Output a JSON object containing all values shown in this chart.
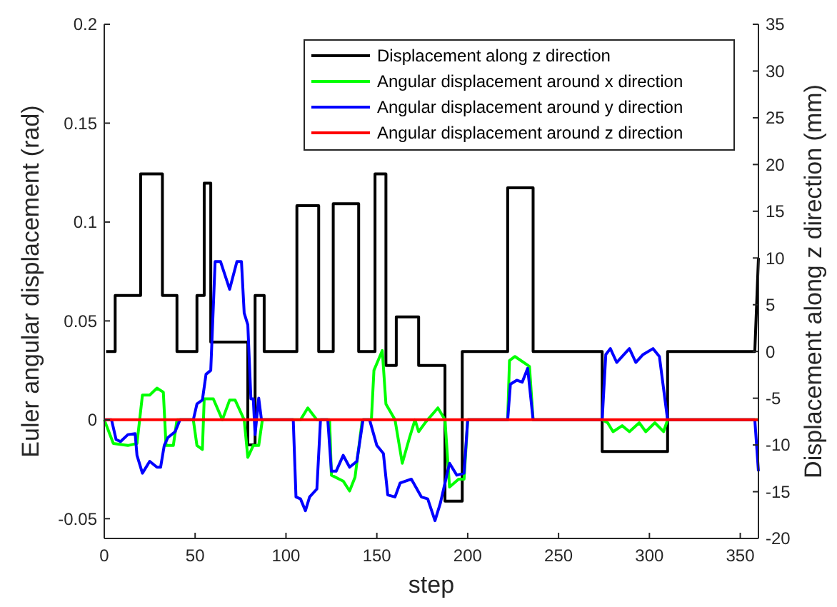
{
  "chart_data": {
    "type": "line",
    "xlabel": "step",
    "ylabel": "Euler angular displacement (rad)",
    "y2label": "Displacement along z direction (mm)",
    "xlim": [
      0,
      360
    ],
    "xticks": [
      0,
      50,
      100,
      150,
      200,
      250,
      300,
      350
    ],
    "ylim": [
      -0.06,
      0.2
    ],
    "yticks": [
      -0.05,
      0,
      0.05,
      0.1,
      0.15,
      0.2
    ],
    "y2lim": [
      -20,
      35
    ],
    "y2ticks": [
      -20,
      -15,
      -10,
      -5,
      0,
      5,
      10,
      15,
      20,
      25,
      30,
      35
    ],
    "legend": "top right",
    "series": [
      {
        "name": "Displacement along z direction",
        "color": "#000000",
        "axis": "y2",
        "x": [
          1,
          6,
          6,
          20,
          20,
          32,
          32,
          40,
          40,
          51,
          51,
          55,
          55,
          58.6,
          58.6,
          79,
          79,
          83,
          83,
          88,
          88,
          106,
          106,
          118,
          118,
          126,
          126,
          140,
          140,
          149,
          149,
          155,
          155,
          160.7,
          160.7,
          173,
          173,
          187.5,
          187.5,
          197,
          197,
          222,
          222,
          236,
          236,
          274,
          274,
          310,
          310,
          358,
          360
        ],
        "values": [
          0,
          0,
          6,
          6,
          19,
          19,
          6,
          6,
          0,
          0,
          6,
          6,
          18,
          18,
          1,
          1,
          -10,
          -10,
          6,
          6,
          0,
          0,
          15.6,
          15.6,
          0,
          0,
          15.8,
          15.8,
          0,
          0,
          19,
          19,
          -1.5,
          -1.5,
          3.7,
          3.7,
          -1.5,
          -1.5,
          -16,
          -16,
          0,
          0,
          17.5,
          17.5,
          0,
          0,
          -10.7,
          -10.7,
          0,
          0,
          10
        ]
      },
      {
        "name": "Angular displacement around x direction",
        "color": "#00ff00",
        "x": [
          0,
          5,
          13,
          18,
          21,
          25,
          29,
          32.5,
          34,
          38,
          40,
          49,
          51,
          54,
          55,
          60,
          65,
          69,
          72,
          77,
          79,
          82,
          85,
          87,
          108,
          112,
          117,
          124,
          125,
          131.5,
          135,
          138,
          142,
          147,
          148.4,
          153,
          155,
          160,
          164,
          168,
          171,
          173,
          177,
          183.6,
          187.5,
          190,
          195,
          198,
          200,
          222,
          223,
          226,
          234,
          236,
          274,
          277,
          280,
          285,
          289,
          294.4,
          298,
          303,
          307.8,
          310,
          360
        ],
        "values": [
          0,
          -0.012,
          -0.013,
          -0.012,
          0.0125,
          0.0125,
          0.016,
          0.014,
          -0.013,
          -0.013,
          0,
          0,
          -0.013,
          -0.015,
          0.0106,
          0.0106,
          0,
          0.01,
          0.01,
          0,
          -0.019,
          -0.013,
          -0.013,
          0,
          0,
          0.006,
          0,
          0,
          -0.028,
          -0.031,
          -0.036,
          -0.029,
          0,
          0,
          0.025,
          0.035,
          0.008,
          0,
          -0.022,
          -0.009,
          0,
          -0.006,
          -0.001,
          0.006,
          0,
          -0.034,
          -0.03,
          -0.03,
          0,
          0,
          0.03,
          0.032,
          0.027,
          0,
          0,
          -0.0015,
          -0.006,
          -0.003,
          -0.006,
          -0.0015,
          -0.006,
          -0.0015,
          -0.006,
          0,
          0
        ]
      },
      {
        "name": "Angular displacement around y direction",
        "color": "#0000ff",
        "x": [
          0,
          4,
          6.5,
          9,
          13,
          17,
          18,
          21,
          25,
          29,
          31,
          33,
          35,
          39,
          41.7,
          49,
          51,
          54,
          56,
          58.6,
          60.4,
          61,
          64,
          69,
          73,
          75.5,
          77,
          79,
          80.7,
          82,
          83,
          85,
          86.5,
          104,
          105.5,
          108,
          110.7,
          113,
          117,
          119,
          123,
          125,
          127.6,
          131.5,
          135,
          139,
          142.4,
          146,
          150,
          153.6,
          156,
          160,
          162.8,
          169,
          174.5,
          178,
          182,
          185,
          190,
          194,
          198,
          200,
          222,
          223.5,
          227,
          230,
          233,
          236,
          274,
          276,
          278.5,
          282,
          286,
          289,
          292.5,
          296.5,
          302,
          305.5,
          310,
          358,
          360
        ],
        "values": [
          0,
          0,
          -0.01,
          -0.011,
          -0.0075,
          -0.007,
          -0.018,
          -0.027,
          -0.021,
          -0.024,
          -0.024,
          -0.013,
          -0.009,
          -0.006,
          0,
          0,
          0.008,
          0.01,
          0.023,
          0.025,
          0.066,
          0.08,
          0.08,
          0.066,
          0.08,
          0.08,
          0.054,
          0.048,
          0.0106,
          0.0106,
          -0.0075,
          0.011,
          0,
          0,
          -0.039,
          -0.04,
          -0.046,
          -0.039,
          -0.035,
          0,
          0,
          -0.026,
          -0.026,
          -0.018,
          -0.024,
          -0.021,
          0,
          0,
          -0.013,
          -0.017,
          -0.038,
          -0.039,
          -0.032,
          -0.03,
          -0.039,
          -0.04,
          -0.051,
          -0.042,
          -0.022,
          -0.028,
          -0.027,
          0,
          0,
          0.018,
          0.02,
          0.019,
          0.026,
          0,
          0,
          0.033,
          0.036,
          0.029,
          0.033,
          0.036,
          0.029,
          0.033,
          0.036,
          0.032,
          0,
          0,
          -0.026
        ]
      },
      {
        "name": "Angular displacement around z direction",
        "color": "#ff0000",
        "x": [
          0,
          30,
          60,
          100,
          150,
          200,
          250,
          300,
          360
        ],
        "values": [
          0,
          0,
          0,
          0,
          0,
          0,
          0,
          0,
          0
        ]
      }
    ]
  }
}
